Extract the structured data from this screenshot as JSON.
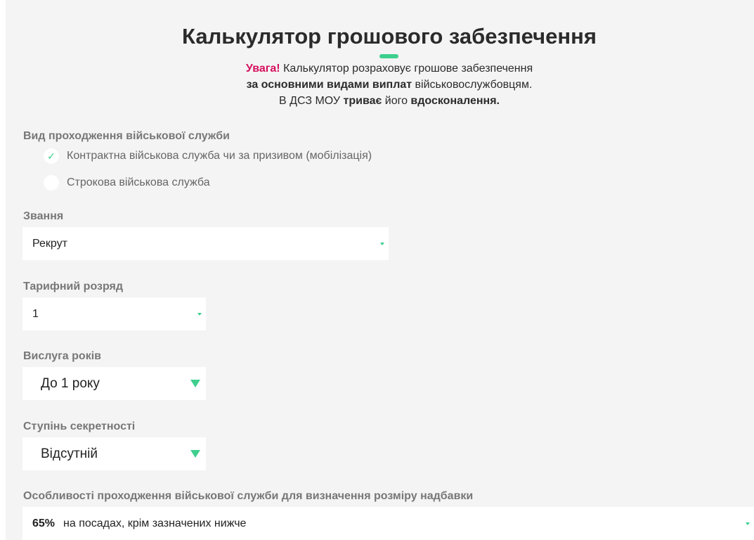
{
  "header": {
    "title": "Калькулятор грошового забезпечення",
    "notice": {
      "warn": "Увага!",
      "line1": " Калькулятор розраховує грошове забезпечення",
      "line2_bold": "за основними видами виплат",
      "line2": " військовослужбовцям.",
      "line3_a": "В ДСЗ МОУ ",
      "line3_bold1": "триває",
      "line3_b": " його ",
      "line3_bold2": "вдосконалення."
    }
  },
  "service_type": {
    "label": "Вид проходження військової служби",
    "options": [
      {
        "label": "Контрактна військова служба чи за призивом (мобілізація)",
        "checked": true
      },
      {
        "label": "Строкова військова служба",
        "checked": false
      }
    ]
  },
  "rank": {
    "label": "Звання",
    "value": "Рекрут"
  },
  "tariff": {
    "label": "Тарифний розряд",
    "value": "1"
  },
  "seniority": {
    "label": "Вислуга років",
    "value": "До 1 року"
  },
  "secrecy": {
    "label": "Ступінь секретності",
    "value": "Відсутній"
  },
  "features": {
    "label": "Особливості проходження військової служби для визначення розміру надбавки",
    "percent": "65%",
    "value": "на посадах, крім зазначених нижче"
  },
  "colors": {
    "accent": "#3ecf8e",
    "warning": "#d6105e",
    "panel": "#f4f4f4"
  }
}
